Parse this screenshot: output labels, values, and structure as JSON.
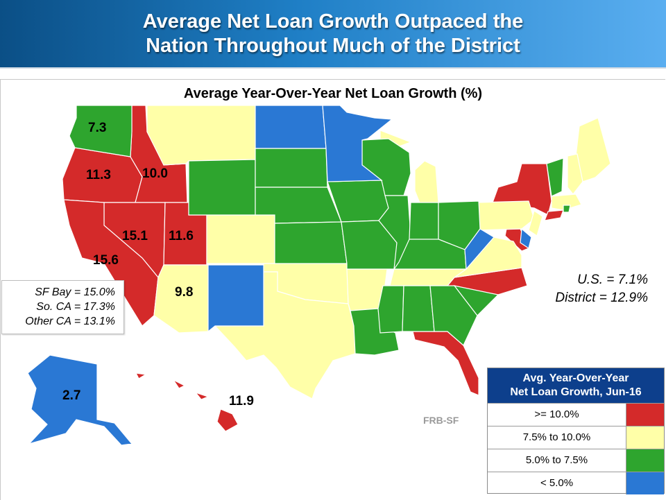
{
  "header": {
    "title_line1": "Average Net Loan Growth Outpaced the",
    "title_line2": "Nation Throughout Much of the District"
  },
  "map": {
    "title": "Average Year-Over-Year  Net Loan Growth (%)",
    "values": {
      "washington": "7.3",
      "oregon": "11.3",
      "idaho": "10.0",
      "nevada": "15.1",
      "utah": "11.6",
      "california": "15.6",
      "arizona": "9.8",
      "alaska": "2.7",
      "hawaii": "11.9"
    },
    "california_breakdown": [
      "SF Bay = 15.0%",
      "So. CA = 17.3%",
      "Other CA = 13.1%"
    ],
    "summary": {
      "us": "U.S. = 7.1%",
      "district": "District = 12.9%"
    },
    "source": "FRB-SF"
  },
  "legend": {
    "title_line1": "Avg. Year-Over-Year",
    "title_line2": "Net Loan Growth, Jun-16",
    "items": [
      {
        "label": ">= 10.0%",
        "color": "#d42a2a"
      },
      {
        "label": "7.5% to 10.0%",
        "color": "#ffffa8"
      },
      {
        "label": "5.0% to 7.5%",
        "color": "#2ea52e"
      },
      {
        "label": "< 5.0%",
        "color": "#2a78d4"
      }
    ]
  },
  "colors": {
    "red": "#d42a2a",
    "yellow": "#ffffa8",
    "green": "#2ea52e",
    "blue": "#2a78d4",
    "header_dark": "#0b4f86",
    "legend_header": "#0d3f8c"
  }
}
